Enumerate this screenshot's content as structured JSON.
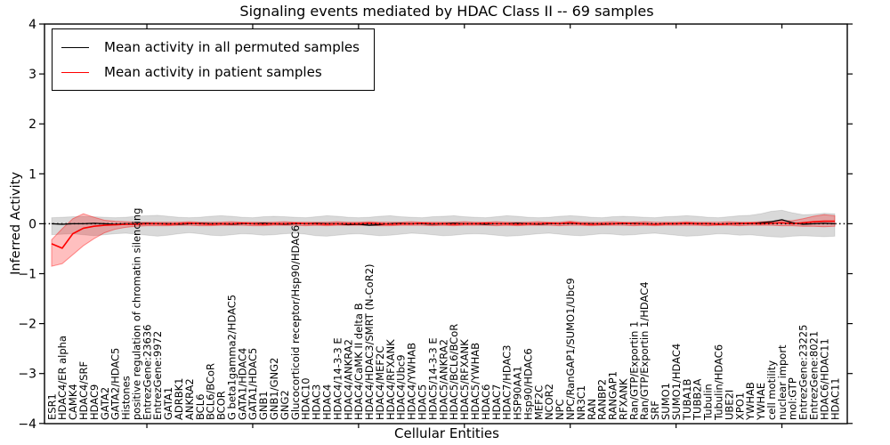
{
  "figure": {
    "background": "#ffffff"
  },
  "chart_data": {
    "type": "line",
    "title": "Signaling events mediated by HDAC Class II -- 69 samples",
    "xlabel": "Cellular Entities",
    "ylabel": "Inferred Activity",
    "ylim": [
      -4,
      4
    ],
    "ytick_labels": [
      "4",
      "3",
      "2",
      "1",
      "0",
      "−1",
      "−2",
      "−3",
      "−4"
    ],
    "grid": false,
    "legend_position": "upper left",
    "legend": [
      "Mean activity in all permuted samples",
      "Mean activity in patient samples"
    ],
    "colors": {
      "permuted_line": "#000000",
      "patient_line": "#ff0000",
      "permuted_band": "rgba(0,0,0,0.15)",
      "permuted_band_edge": "rgba(0,0,0,0.10)",
      "patient_band": "rgba(255,0,0,0.25)",
      "patient_band_edge": "rgba(255,0,0,0.40)",
      "zero_line": "#000000"
    },
    "categories": [
      "ESR1",
      "HDAC4/ER alpha",
      "CAMK4",
      "HDAC4/SRF",
      "HDAC9",
      "GATA2",
      "GATA2/HDAC5",
      "Histones",
      "positive regulation of chromatin silencing",
      "EntrezGene:23636",
      "EntrezGene:9972",
      "GATA1",
      "ADRBK1",
      "ANKRA2",
      "BCL6",
      "BCL6/BCoR",
      "BCOR",
      "G beta1gamma2/HDAC5",
      "GATA1/HDAC4",
      "GATA1/HDAC5",
      "GNB1",
      "GNB1/GNG2",
      "GNG2",
      "Glucocorticoid receptor/Hsp90/HDAC6",
      "HDAC10",
      "HDAC3",
      "HDAC4",
      "HDAC4/14-3-3 E",
      "HDAC4/ANKRA2",
      "HDAC4/CaMK II delta B",
      "HDAC4/HDAC3/SMRT (N-CoR2)",
      "HDAC4/MEF2C",
      "HDAC4/RFXANK",
      "HDAC4/Ubc9",
      "HDAC4/YWHAB",
      "HDAC5",
      "HDAC5/14-3-3 E",
      "HDAC5/ANKRA2",
      "HDAC5/BCL6/BCoR",
      "HDAC5/RFXANK",
      "HDAC5/YWHAB",
      "HDAC6",
      "HDAC7",
      "HDAC7/HDAC3",
      "HSP90AA1",
      "Hsp90/HDAC6",
      "MEF2C",
      "NCOR2",
      "NPC",
      "NPC/RanGAP1/SUMO1/Ubc9",
      "NR3C1",
      "RAN",
      "RANBP2",
      "RANGAP1",
      "RFXANK",
      "Ran/GTP/Exportin 1",
      "Ran/GTP/Exportin 1/HDAC4",
      "SRF",
      "SUMO1",
      "SUMO1/HDAC4",
      "TUBA1B",
      "TUBB2A",
      "Tubulin",
      "Tubulin/HDAC6",
      "UBE2I",
      "XPO1",
      "YWHAB",
      "YWHAE",
      "cell motility",
      "nuclear import",
      "mol:GTP",
      "EntrezGene:23225",
      "EntrezGene:8021",
      "HDAC6/HDAC11",
      "HDAC11"
    ],
    "series": [
      {
        "name": "Mean activity in all permuted samples",
        "values": [
          0,
          -0.01,
          0,
          0,
          0.01,
          0,
          -0.01,
          0,
          0,
          0.01,
          0,
          0,
          -0.01,
          0,
          0.01,
          0,
          0,
          -0.01,
          0,
          0,
          0.01,
          0,
          -0.01,
          0,
          0,
          0.01,
          0,
          0,
          -0.02,
          -0.01,
          -0.03,
          -0.02,
          0,
          0.01,
          0,
          0,
          -0.01,
          0,
          0.01,
          0,
          0,
          -0.01,
          0,
          0,
          0.01,
          0,
          -0.01,
          0,
          0,
          0.01,
          0,
          0,
          -0.01,
          0,
          0,
          0.01,
          0,
          -0.01,
          0,
          0,
          0.01,
          0,
          0,
          -0.01,
          0,
          0.01,
          0,
          0.02,
          0.04,
          0.08,
          0.02,
          -0.01,
          0,
          0.01,
          0
        ],
        "band_hi": [
          0.12,
          0.13,
          0.14,
          0.15,
          0.14,
          0.13,
          0.12,
          0.13,
          0.15,
          0.16,
          0.17,
          0.15,
          0.13,
          0.12,
          0.13,
          0.15,
          0.16,
          0.15,
          0.13,
          0.12,
          0.14,
          0.15,
          0.14,
          0.13,
          0.12,
          0.14,
          0.16,
          0.15,
          0.13,
          0.12,
          0.13,
          0.15,
          0.16,
          0.14,
          0.13,
          0.12,
          0.14,
          0.15,
          0.16,
          0.14,
          0.13,
          0.12,
          0.14,
          0.16,
          0.15,
          0.13,
          0.12,
          0.13,
          0.15,
          0.16,
          0.15,
          0.13,
          0.12,
          0.14,
          0.15,
          0.14,
          0.13,
          0.12,
          0.14,
          0.15,
          0.16,
          0.15,
          0.13,
          0.12,
          0.14,
          0.16,
          0.17,
          0.2,
          0.25,
          0.27,
          0.22,
          0.18,
          0.19,
          0.21,
          0.2
        ],
        "band_lo": [
          -0.22,
          -0.21,
          -0.2,
          -0.22,
          -0.24,
          -0.22,
          -0.2,
          -0.19,
          -0.21,
          -0.23,
          -0.25,
          -0.23,
          -0.2,
          -0.18,
          -0.2,
          -0.23,
          -0.24,
          -0.22,
          -0.2,
          -0.21,
          -0.23,
          -0.22,
          -0.2,
          -0.19,
          -0.21,
          -0.24,
          -0.25,
          -0.23,
          -0.21,
          -0.2,
          -0.22,
          -0.24,
          -0.23,
          -0.21,
          -0.19,
          -0.2,
          -0.22,
          -0.24,
          -0.23,
          -0.21,
          -0.2,
          -0.21,
          -0.23,
          -0.25,
          -0.24,
          -0.22,
          -0.2,
          -0.19,
          -0.21,
          -0.23,
          -0.24,
          -0.22,
          -0.2,
          -0.21,
          -0.23,
          -0.22,
          -0.2,
          -0.19,
          -0.21,
          -0.23,
          -0.25,
          -0.24,
          -0.22,
          -0.2,
          -0.21,
          -0.23,
          -0.22,
          -0.24,
          -0.26,
          -0.27,
          -0.25,
          -0.24,
          -0.25,
          -0.26,
          -0.25
        ]
      },
      {
        "name": "Mean activity in patient samples",
        "values": [
          -0.4,
          -0.49,
          -0.2,
          -0.09,
          -0.05,
          -0.03,
          -0.02,
          -0.01,
          -0.01,
          0,
          0,
          -0.01,
          0,
          0.01,
          0,
          -0.01,
          0,
          0,
          0.01,
          0,
          -0.01,
          0,
          0,
          0.01,
          0,
          0,
          -0.01,
          0,
          0,
          0,
          0.01,
          0,
          -0.01,
          0,
          0,
          0.01,
          0,
          0,
          -0.01,
          0,
          0,
          0.01,
          0,
          0,
          -0.01,
          0,
          0,
          0.01,
          0,
          0.02,
          0,
          -0.01,
          0,
          0,
          0.01,
          0,
          0,
          -0.01,
          0,
          0,
          0.01,
          0,
          0,
          -0.01,
          0,
          0,
          0.01,
          0,
          0.01,
          0.02,
          0,
          0.02,
          0.04,
          0.05,
          0.05
        ],
        "band_hi": [
          -0.32,
          -0.1,
          0.1,
          0.2,
          0.13,
          0.07,
          0.05,
          0.04,
          0.03,
          0.03,
          0.03,
          0.03,
          0.03,
          0.04,
          0.03,
          0.03,
          0.03,
          0.04,
          0.03,
          0.03,
          0.03,
          0.03,
          0.04,
          0.03,
          0.03,
          0.03,
          0.03,
          0.04,
          0.03,
          0.03,
          0.04,
          0.03,
          0.03,
          0.03,
          0.04,
          0.03,
          0.03,
          0.03,
          0.03,
          0.04,
          0.03,
          0.03,
          0.04,
          0.03,
          0.03,
          0.03,
          0.04,
          0.03,
          0.03,
          0.05,
          0.03,
          0.03,
          0.03,
          0.04,
          0.03,
          0.03,
          0.04,
          0.03,
          0.03,
          0.03,
          0.04,
          0.03,
          0.03,
          0.03,
          0.04,
          0.03,
          0.03,
          0.04,
          0.05,
          0.06,
          0.06,
          0.1,
          0.15,
          0.18,
          0.16
        ],
        "band_lo": [
          -0.85,
          -0.8,
          -0.62,
          -0.44,
          -0.3,
          -0.18,
          -0.11,
          -0.07,
          -0.05,
          -0.04,
          -0.04,
          -0.04,
          -0.03,
          -0.03,
          -0.04,
          -0.04,
          -0.03,
          -0.03,
          -0.03,
          -0.04,
          -0.04,
          -0.03,
          -0.03,
          -0.03,
          -0.04,
          -0.03,
          -0.04,
          -0.03,
          -0.03,
          -0.03,
          -0.03,
          -0.04,
          -0.04,
          -0.03,
          -0.03,
          -0.03,
          -0.04,
          -0.03,
          -0.04,
          -0.03,
          -0.03,
          -0.03,
          -0.04,
          -0.03,
          -0.04,
          -0.03,
          -0.03,
          -0.03,
          -0.04,
          -0.03,
          -0.03,
          -0.04,
          -0.03,
          -0.03,
          -0.03,
          -0.04,
          -0.03,
          -0.04,
          -0.03,
          -0.03,
          -0.03,
          -0.03,
          -0.04,
          -0.03,
          -0.03,
          -0.04,
          -0.03,
          -0.03,
          -0.03,
          -0.04,
          -0.04,
          -0.05,
          -0.05,
          -0.06,
          -0.05
        ]
      }
    ]
  }
}
